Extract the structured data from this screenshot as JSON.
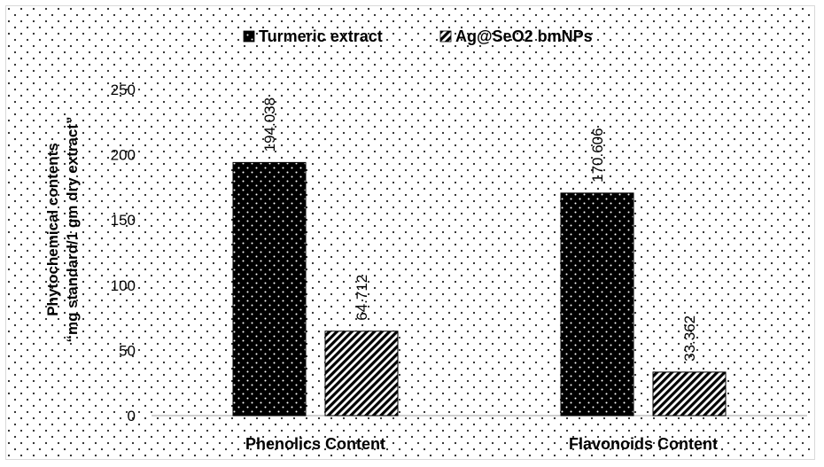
{
  "chart_data": {
    "type": "bar",
    "title": "",
    "xlabel": "",
    "ylabel_line1": "Phytochemical contents",
    "ylabel_line2": "“mg standard/1 gm dry extract”",
    "ylim": [
      0,
      250
    ],
    "yticks": [
      "0",
      "50",
      "100",
      "150",
      "200",
      "250"
    ],
    "ytick_values": [
      0,
      50,
      100,
      150,
      200,
      250
    ],
    "categories": [
      "Phenolics Content",
      "Flavonoids Content"
    ],
    "series": [
      {
        "name": "Turmeric extract",
        "values": [
          194.038,
          170.606
        ],
        "labels": [
          "194.038",
          "170.606"
        ],
        "pattern": "dots",
        "color": "#000000"
      },
      {
        "name": "Ag@SeO2 bmNPs",
        "values": [
          64.712,
          33.362
        ],
        "labels": [
          "64.712",
          "33.362"
        ],
        "pattern": "diagonal-stripes",
        "color": "#000000"
      }
    ],
    "legend_position": "top-center",
    "grid": false,
    "background": "dotted"
  }
}
